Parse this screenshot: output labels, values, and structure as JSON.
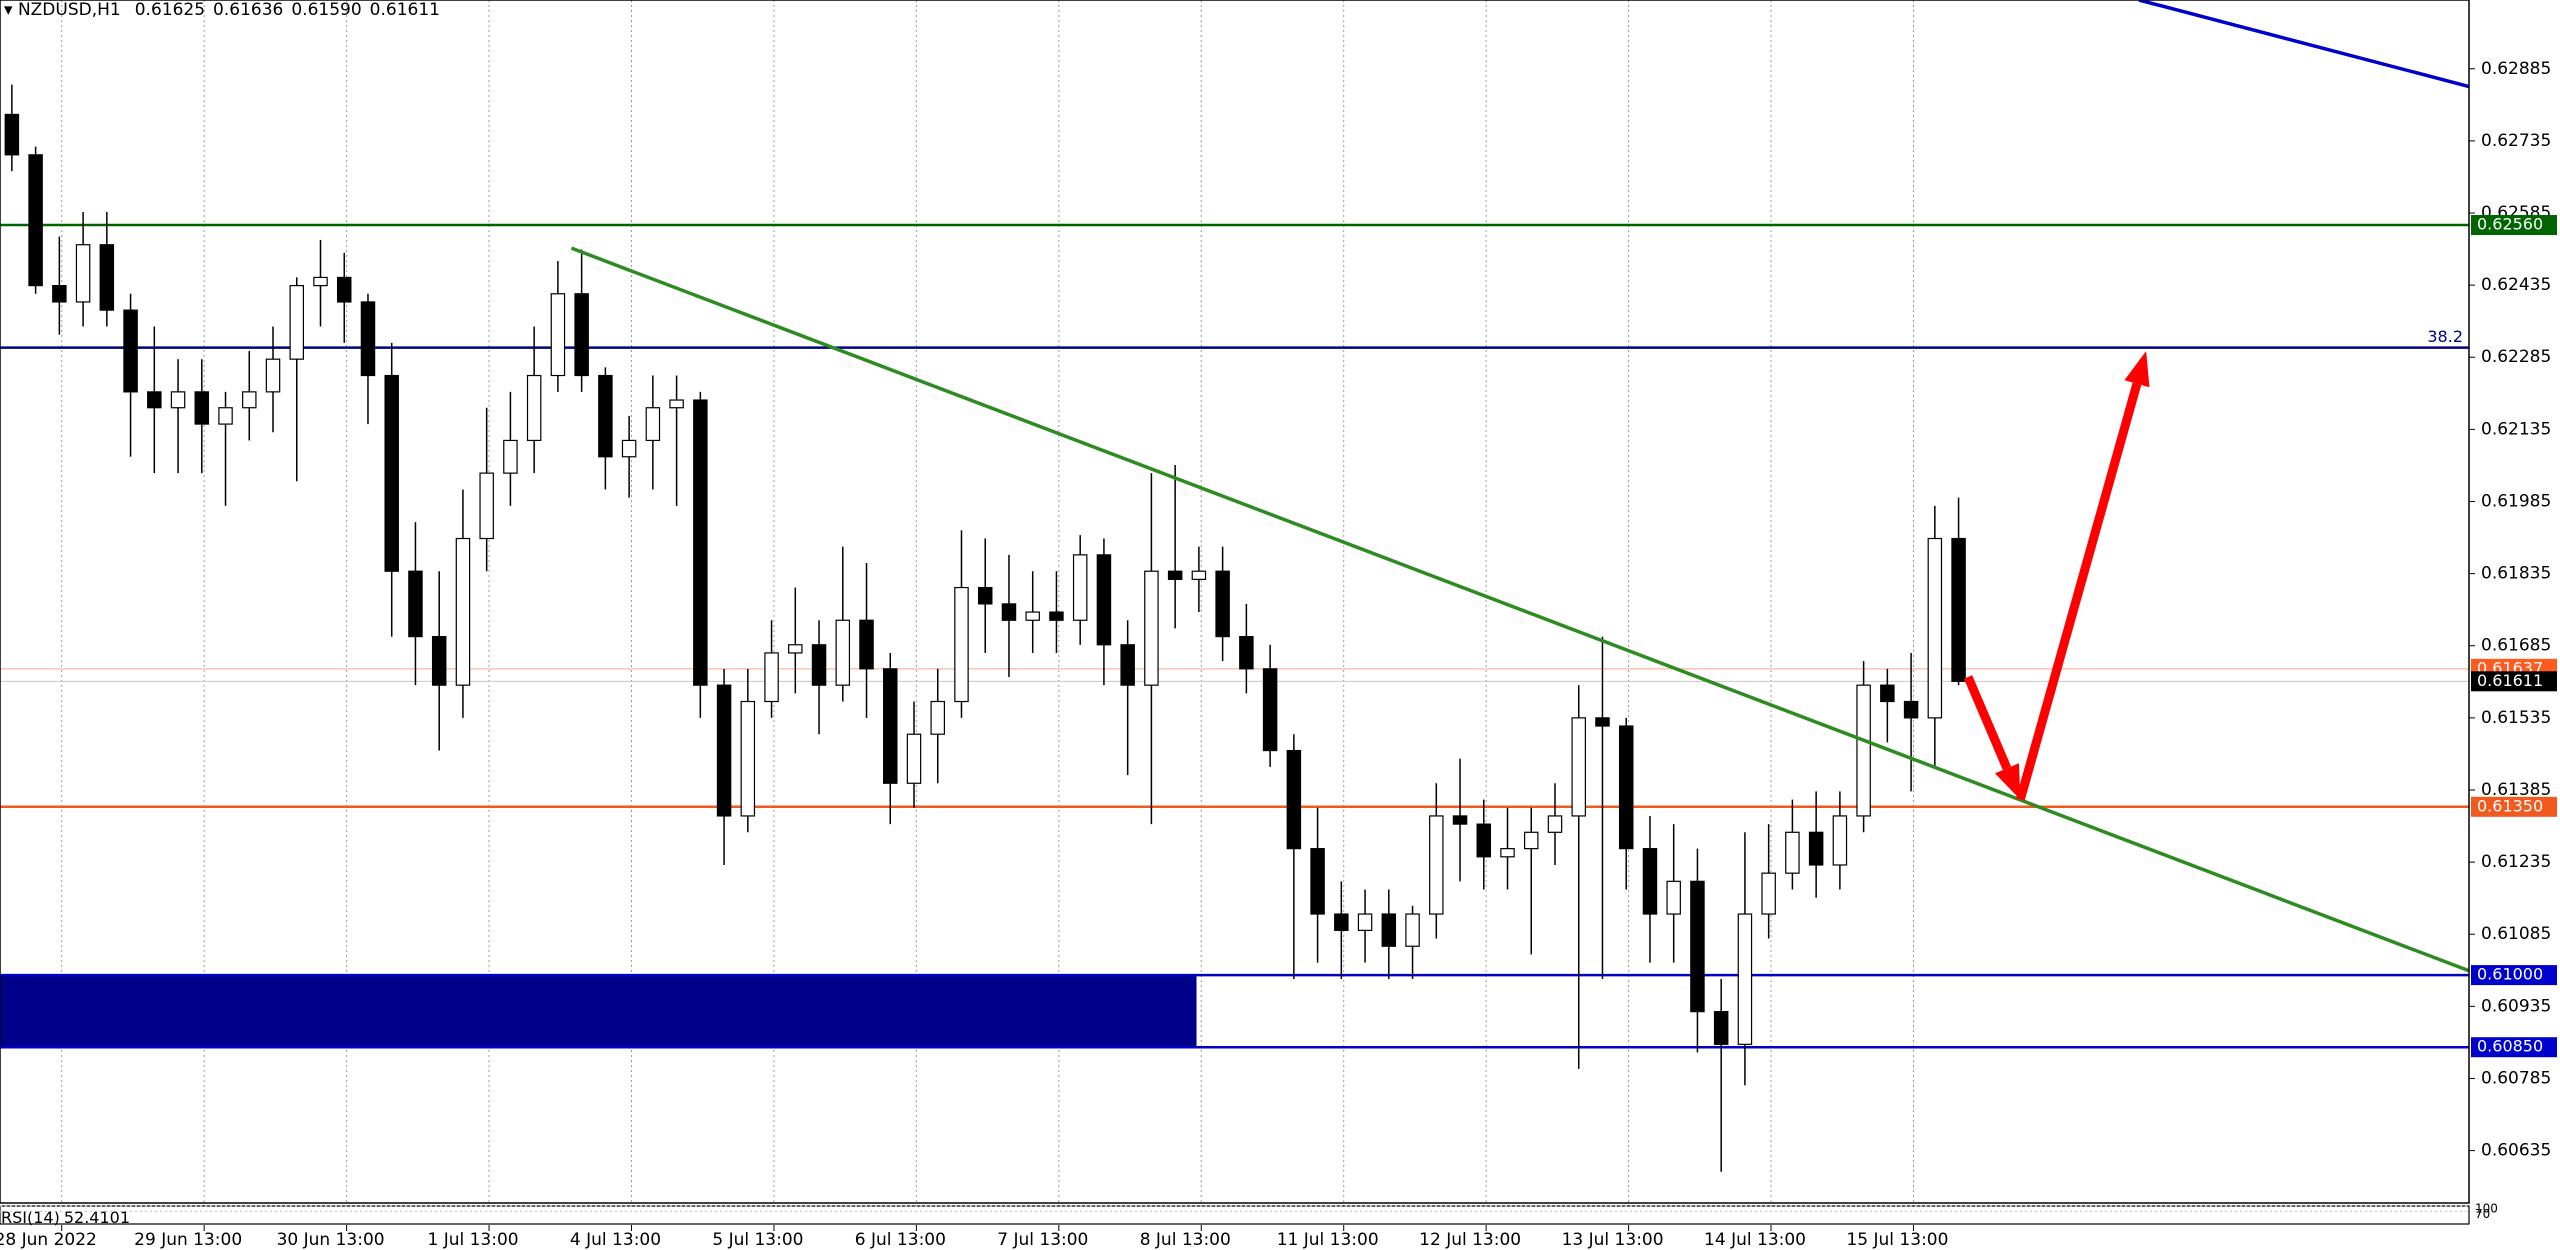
{
  "chart_data": {
    "type": "candlestick",
    "title": "NZDUSD,H1",
    "title_values": [
      0.61625,
      0.61636,
      {
        "value": 0.6159,
        "label": "0.61590"
      },
      0.61611
    ],
    "open": [
      0.6279,
      0.62706,
      0.62434,
      0.624,
      0.62519,
      0.62383,
      0.62213,
      0.6218,
      0.62213,
      0.62146,
      0.6218,
      0.62213,
      0.62281,
      0.62434,
      0.62451,
      0.624,
      0.62247,
      0.6184,
      0.61704,
      0.61603,
      0.61908,
      0.62044,
      0.62112,
      0.62247,
      0.62417,
      0.62247,
      0.62078,
      0.62112,
      0.6218,
      0.62196,
      0.61603,
      0.61331,
      0.61569,
      0.6167,
      0.61687,
      0.61603,
      0.61738,
      0.61637,
      0.61399,
      0.61501,
      0.61569,
      0.61806,
      0.61772,
      0.61738,
      0.61755,
      0.61738,
      0.61874,
      0.61687,
      0.61603,
      0.6184,
      0.61823,
      0.6184,
      0.61704,
      0.61637,
      0.61467,
      0.61263,
      0.61127,
      0.61093,
      0.61127,
      0.6106,
      0.61127,
      0.61331,
      0.61314,
      0.61246,
      0.61263,
      0.61297,
      0.61331,
      0.61535,
      0.61518,
      0.61263,
      0.61127,
      0.61195,
      0.60924,
      0.60856,
      0.61127,
      0.61212,
      0.61297,
      0.61229,
      0.61331,
      0.61603,
      0.61569,
      0.61535,
      0.61908
    ],
    "high": [
      0.62852,
      0.62723,
      0.62536,
      0.62587,
      0.62587,
      0.62417,
      0.62349,
      0.62281,
      0.62281,
      0.62213,
      0.62298,
      0.62349,
      0.62451,
      0.62529,
      0.62502,
      0.62417,
      0.62315,
      0.61942,
      0.6184,
      0.6201,
      0.6218,
      0.62213,
      0.62349,
      0.62485,
      0.62509,
      0.62264,
      0.62163,
      0.62247,
      0.62247,
      0.62213,
      0.61637,
      0.61637,
      0.61738,
      0.61806,
      0.61738,
      0.61891,
      0.61857,
      0.6167,
      0.61569,
      0.61637,
      0.61925,
      0.61908,
      0.61874,
      0.6184,
      0.6184,
      0.61915,
      0.61908,
      0.61738,
      0.62044,
      0.62061,
      0.61891,
      0.61891,
      0.61772,
      0.61687,
      0.61501,
      0.61348,
      0.61195,
      0.61178,
      0.61178,
      0.61144,
      0.61399,
      0.6145,
      0.61365,
      0.61348,
      0.61348,
      0.61399,
      0.61603,
      0.61704,
      0.61535,
      0.61331,
      0.61314,
      0.61263,
      0.60992,
      0.61297,
      0.61314,
      0.61365,
      0.61382,
      0.61382,
      0.61653,
      0.61637,
      0.6167,
      0.61976,
      0.61993
    ],
    "low": [
      0.62672,
      0.62417,
      0.62332,
      0.62349,
      0.62349,
      0.62078,
      0.62044,
      0.62044,
      0.62044,
      0.61976,
      0.62112,
      0.62129,
      0.62027,
      0.62349,
      0.62315,
      0.62146,
      0.61704,
      0.61603,
      0.61467,
      0.61535,
      0.6184,
      0.61976,
      0.62044,
      0.62213,
      0.62213,
      0.6201,
      0.61993,
      0.6201,
      0.61976,
      0.61535,
      0.61229,
      0.61297,
      0.61535,
      0.61586,
      0.61501,
      0.61569,
      0.61535,
      0.61314,
      0.61348,
      0.61399,
      0.61535,
      0.6167,
      0.6162,
      0.6167,
      0.6167,
      0.61687,
      0.61603,
      0.61416,
      0.61314,
      0.61721,
      0.61755,
      0.61653,
      0.61586,
      0.61433,
      0.60992,
      0.61026,
      0.60992,
      0.61026,
      0.60992,
      0.60992,
      0.61076,
      0.61195,
      0.61178,
      0.61178,
      0.61043,
      0.61229,
      0.60805,
      0.60992,
      0.61178,
      0.61026,
      0.61026,
      0.60839,
      0.60591,
      0.60771,
      0.61076,
      0.61178,
      0.61161,
      0.61178,
      0.61297,
      0.61484,
      0.61382,
      0.61433,
      0.61603
    ],
    "close": [
      0.62706,
      0.62434,
      0.624,
      0.62519,
      0.62383,
      0.62213,
      0.6218,
      0.62213,
      0.62146,
      0.6218,
      0.62213,
      0.62281,
      0.62434,
      0.62451,
      0.624,
      0.62247,
      0.6184,
      0.61704,
      0.61603,
      0.61908,
      0.62044,
      0.62112,
      0.62247,
      0.62417,
      0.62247,
      0.62078,
      0.62112,
      0.6218,
      0.62196,
      0.61603,
      0.61331,
      0.61569,
      0.6167,
      0.61687,
      0.61603,
      0.61738,
      0.61637,
      0.61399,
      0.61501,
      0.61569,
      0.61806,
      0.61772,
      0.61738,
      0.61755,
      0.61738,
      0.61874,
      0.61687,
      0.61603,
      0.6184,
      0.61823,
      0.6184,
      0.61704,
      0.61637,
      0.61467,
      0.61263,
      0.61127,
      0.61093,
      0.61127,
      0.6106,
      0.61127,
      0.61331,
      0.61314,
      0.61246,
      0.61263,
      0.61297,
      0.61331,
      0.61535,
      0.61518,
      0.61263,
      0.61127,
      0.61195,
      0.60924,
      0.60856,
      0.61127,
      0.61212,
      0.61297,
      0.61229,
      0.61331,
      0.61603,
      0.61569,
      0.61535,
      0.61908,
      0.61611
    ],
    "up_color": "#ffffff",
    "down_color": "#000000",
    "outline": "#000000",
    "xlim": [
      0,
      104
    ],
    "ylim": [
      0.60526,
      0.63028
    ],
    "xticks": [
      {
        "value": 2.6,
        "label": "28 Jun 2022"
      },
      {
        "value": 8.6,
        "label": "29 Jun 13:00"
      },
      {
        "value": 14.6,
        "label": "30 Jun 13:00"
      },
      {
        "value": 20.6,
        "label": "1 Jul 13:00"
      },
      {
        "value": 26.6,
        "label": "4 Jul 13:00"
      },
      {
        "value": 32.6,
        "label": "5 Jul 13:00"
      },
      {
        "value": 38.6,
        "label": "6 Jul 13:00"
      },
      {
        "value": 44.6,
        "label": "7 Jul 13:00"
      },
      {
        "value": 50.6,
        "label": "8 Jul 13:00"
      },
      {
        "value": 56.6,
        "label": "11 Jul 13:00"
      },
      {
        "value": 62.6,
        "label": "12 Jul 13:00"
      },
      {
        "value": 68.6,
        "label": "13 Jul 13:00"
      },
      {
        "value": 74.6,
        "label": "14 Jul 13:00"
      },
      {
        "value": 80.6,
        "label": "15 Jul 13:00"
      }
    ],
    "yticks": [
      0.62885,
      0.62735,
      0.62585,
      0.62435,
      0.62285,
      0.62135,
      0.61985,
      0.61835,
      0.61685,
      0.61535,
      0.61385,
      0.61235,
      0.61085,
      0.60935,
      0.60785,
      0.60635
    ],
    "xgrid": true,
    "levels": [
      {
        "value": 0.6256,
        "label": "0.62560",
        "color": "#006400"
      },
      {
        "value": 0.6135,
        "label": "0.61350",
        "color": "#f05a1e"
      },
      {
        "value": 0.61,
        "label": "0.61000",
        "color": "#0000cd"
      },
      {
        "value": 0.6085,
        "label": "0.60850",
        "color": "#0000cd"
      }
    ],
    "fib_level": {
      "value": 0.62305,
      "label": "38.2",
      "color": "#000080"
    },
    "bid": {
      "value": 0.61637,
      "label": "0.61637",
      "color": "#ff5a1f"
    },
    "last": {
      "value": 0.61611,
      "label": "0.61611",
      "color": "#000000"
    },
    "zone": {
      "x": [
        0,
        50.4
      ],
      "y": [
        0.6085,
        0.61
      ],
      "color": "#00008b"
    },
    "trendlines": [
      {
        "color": "#2e8b22",
        "x": [
          24.07,
          104
        ],
        "y": [
          0.62512,
          0.61009
        ]
      },
      {
        "color": "#0000cd",
        "x": [
          90.1,
          104
        ],
        "y": [
          0.63028,
          0.62848
        ]
      }
    ],
    "arrows": [
      {
        "color": "#ff0000",
        "x": [
          82.9,
          85.1
        ],
        "y": [
          0.6162,
          0.61365
        ]
      },
      {
        "color": "#ff0000",
        "x": [
          85.1,
          90.4
        ],
        "y": [
          0.61365,
          0.62298
        ]
      }
    ],
    "rsi": {
      "name": "RSI(14)",
      "value": 52.4101,
      "ylim": [
        0,
        100
      ],
      "yticks": [
        70,
        100
      ]
    }
  }
}
